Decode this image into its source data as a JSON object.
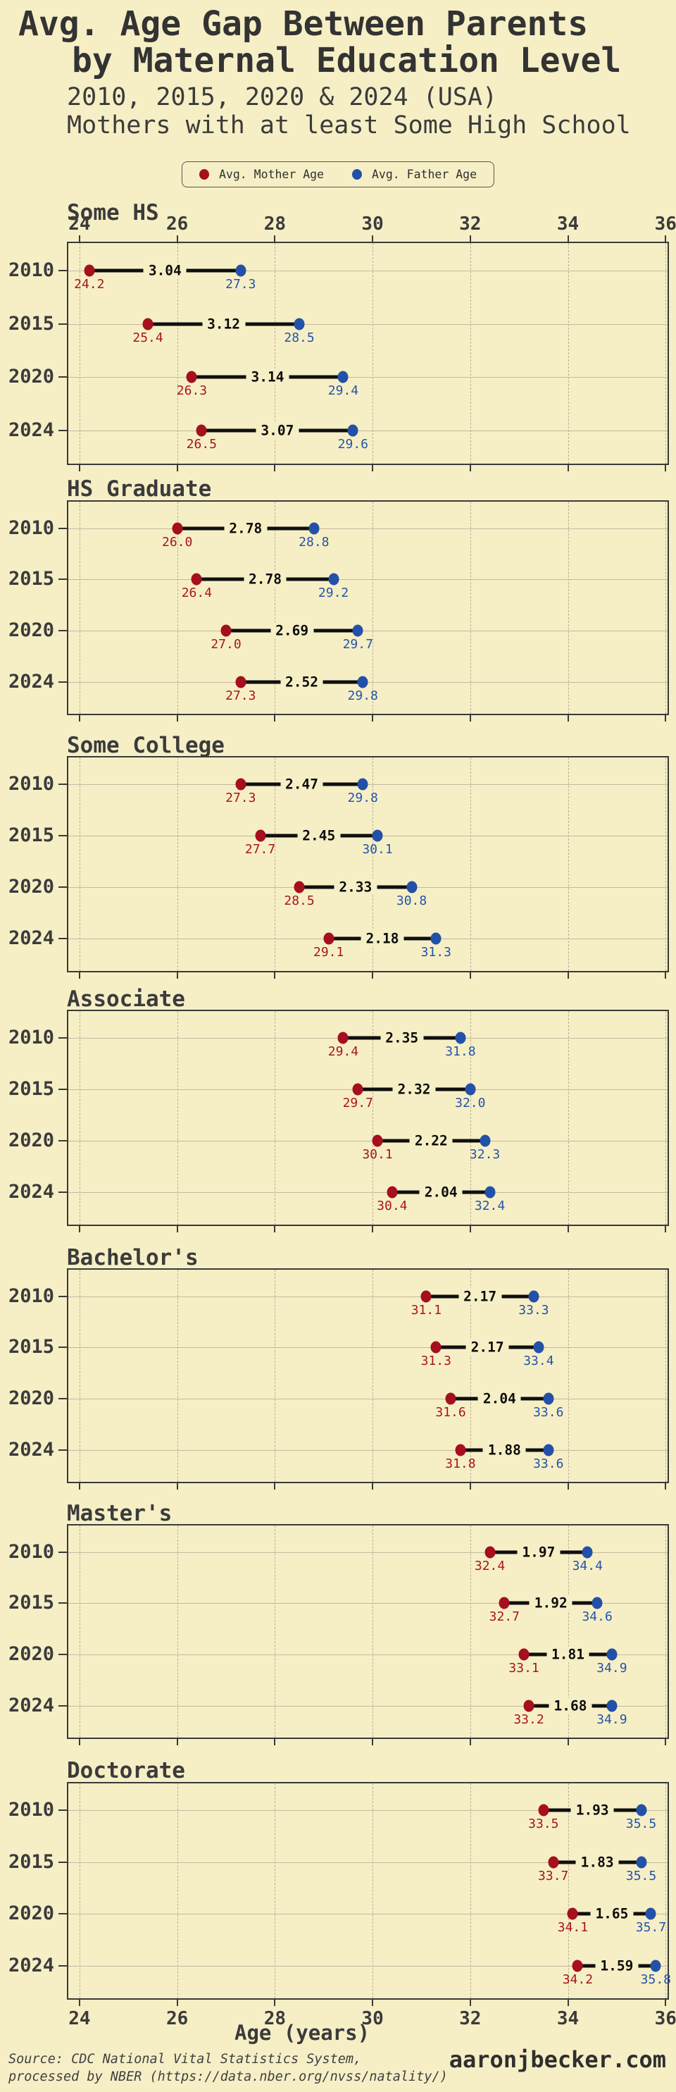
{
  "header": {
    "title_line1": "Avg. Age Gap Between Parents",
    "title_line2": "by Maternal Education Level",
    "subtitle_line1": "2010, 2015, 2020 & 2024 (USA)",
    "subtitle_line2": "Mothers with at least Some High School"
  },
  "legend": {
    "mother_label": "Avg. Mother Age",
    "father_label": "Avg. Father Age"
  },
  "colors": {
    "background": "#F6EFC6",
    "mother": "#A50F1E",
    "father": "#2351A8",
    "gap_line": "#0f0f0f",
    "text": "#3b3b3b"
  },
  "axis": {
    "ticks": [
      24,
      26,
      28,
      30,
      32,
      34,
      36
    ],
    "xmin": 23.77,
    "xmax": 36.04,
    "xlabel": "Age (years)"
  },
  "footer": {
    "source_line1": "Source: CDC National Vital Statistics System,",
    "source_line2": "  processed by NBER (https://data.nber.org/nvss/natality/)",
    "credit": "aaronjbecker.com"
  },
  "chart_data": {
    "type": "dumbbell",
    "categories": [
      "2010",
      "2015",
      "2020",
      "2024"
    ],
    "x_range": [
      24,
      36
    ],
    "grid": true,
    "legend_position": "top-center",
    "panels": [
      {
        "label": "Some HS",
        "rows": [
          {
            "year": "2010",
            "mother": 24.2,
            "father": 27.3,
            "gap": 3.04
          },
          {
            "year": "2015",
            "mother": 25.4,
            "father": 28.5,
            "gap": 3.12
          },
          {
            "year": "2020",
            "mother": 26.3,
            "father": 29.4,
            "gap": 3.14
          },
          {
            "year": "2024",
            "mother": 26.5,
            "father": 29.6,
            "gap": 3.07
          }
        ]
      },
      {
        "label": "HS Graduate",
        "rows": [
          {
            "year": "2010",
            "mother": 26.0,
            "father": 28.8,
            "gap": 2.78
          },
          {
            "year": "2015",
            "mother": 26.4,
            "father": 29.2,
            "gap": 2.78
          },
          {
            "year": "2020",
            "mother": 27.0,
            "father": 29.7,
            "gap": 2.69
          },
          {
            "year": "2024",
            "mother": 27.3,
            "father": 29.8,
            "gap": 2.52
          }
        ]
      },
      {
        "label": "Some College",
        "rows": [
          {
            "year": "2010",
            "mother": 27.3,
            "father": 29.8,
            "gap": 2.47
          },
          {
            "year": "2015",
            "mother": 27.7,
            "father": 30.1,
            "gap": 2.45
          },
          {
            "year": "2020",
            "mother": 28.5,
            "father": 30.8,
            "gap": 2.33
          },
          {
            "year": "2024",
            "mother": 29.1,
            "father": 31.3,
            "gap": 2.18
          }
        ]
      },
      {
        "label": "Associate",
        "rows": [
          {
            "year": "2010",
            "mother": 29.4,
            "father": 31.8,
            "gap": 2.35
          },
          {
            "year": "2015",
            "mother": 29.7,
            "father": 32.0,
            "gap": 2.32
          },
          {
            "year": "2020",
            "mother": 30.1,
            "father": 32.3,
            "gap": 2.22
          },
          {
            "year": "2024",
            "mother": 30.4,
            "father": 32.4,
            "gap": 2.04
          }
        ]
      },
      {
        "label": "Bachelor's",
        "rows": [
          {
            "year": "2010",
            "mother": 31.1,
            "father": 33.3,
            "gap": 2.17
          },
          {
            "year": "2015",
            "mother": 31.3,
            "father": 33.4,
            "gap": 2.17
          },
          {
            "year": "2020",
            "mother": 31.6,
            "father": 33.6,
            "gap": 2.04
          },
          {
            "year": "2024",
            "mother": 31.8,
            "father": 33.6,
            "gap": 1.88
          }
        ]
      },
      {
        "label": "Master's",
        "rows": [
          {
            "year": "2010",
            "mother": 32.4,
            "father": 34.4,
            "gap": 1.97
          },
          {
            "year": "2015",
            "mother": 32.7,
            "father": 34.6,
            "gap": 1.92
          },
          {
            "year": "2020",
            "mother": 33.1,
            "father": 34.9,
            "gap": 1.81
          },
          {
            "year": "2024",
            "mother": 33.2,
            "father": 34.9,
            "gap": 1.68
          }
        ]
      },
      {
        "label": "Doctorate",
        "rows": [
          {
            "year": "2010",
            "mother": 33.5,
            "father": 35.5,
            "gap": 1.93
          },
          {
            "year": "2015",
            "mother": 33.7,
            "father": 35.5,
            "gap": 1.83
          },
          {
            "year": "2020",
            "mother": 34.1,
            "father": 35.7,
            "gap": 1.65
          },
          {
            "year": "2024",
            "mother": 34.2,
            "father": 35.8,
            "gap": 1.59
          }
        ]
      }
    ]
  }
}
